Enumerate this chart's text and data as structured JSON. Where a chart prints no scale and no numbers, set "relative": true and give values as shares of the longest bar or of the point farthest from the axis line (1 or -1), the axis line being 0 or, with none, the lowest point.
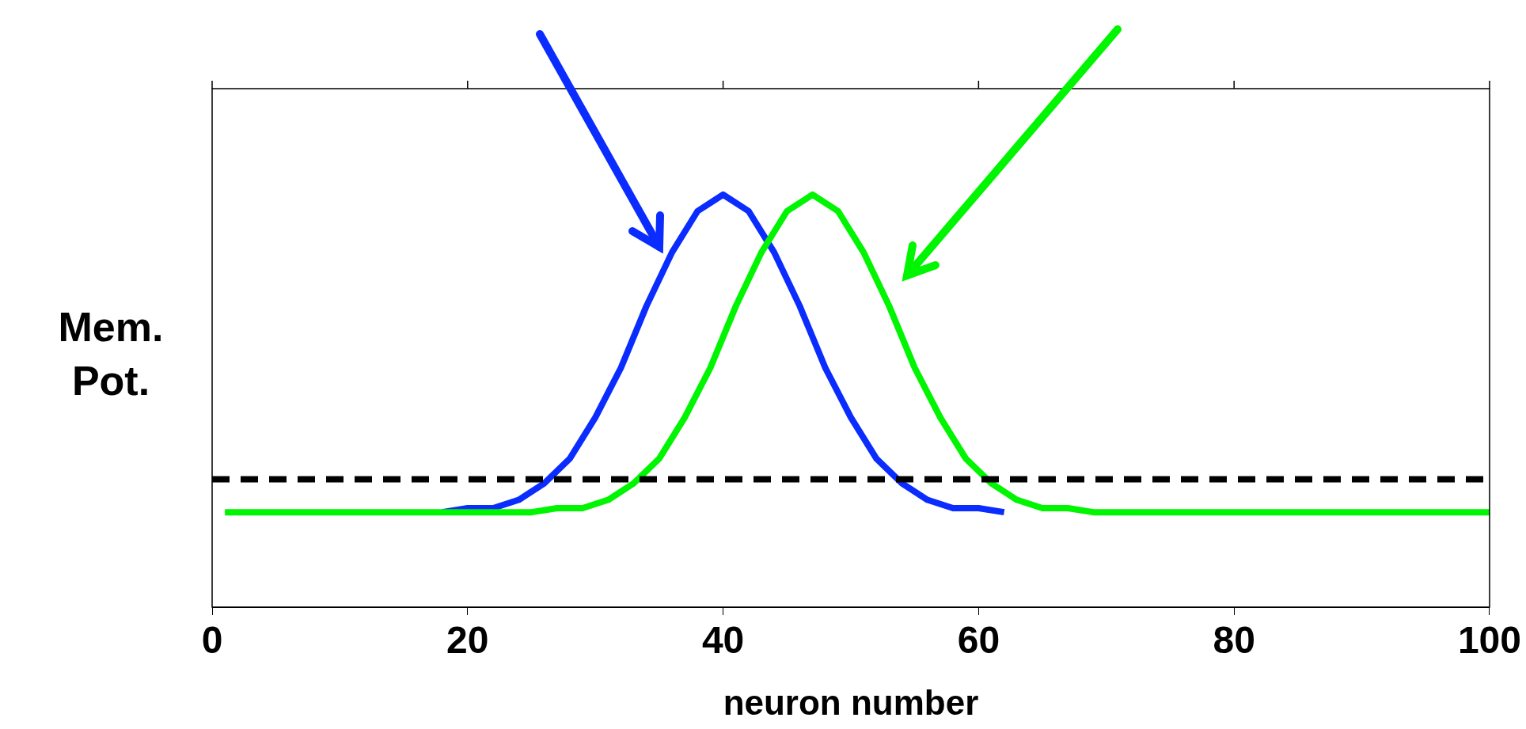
{
  "chart_data": {
    "type": "line",
    "relative": true,
    "xlabel": "neuron number",
    "ylabel": "Mem.\nPot.",
    "xlim": [
      0,
      100
    ],
    "xticks": [
      0,
      20,
      40,
      60,
      80,
      100
    ],
    "grid": false,
    "legend": false,
    "marker": "none",
    "line_style": "solid",
    "ref_lines": [
      {
        "axis": "y",
        "value": 0.31,
        "color": "#000000",
        "line_style": "dashed"
      }
    ],
    "series": [
      {
        "color": "#0a2cff",
        "x": [
          18,
          20,
          22,
          24,
          26,
          28,
          30,
          32,
          34,
          36,
          38,
          40,
          42,
          44,
          46,
          48,
          50,
          52,
          54,
          56,
          58,
          60,
          62
        ],
        "values": [
          0.23,
          0.24,
          0.24,
          0.26,
          0.3,
          0.36,
          0.46,
          0.58,
          0.73,
          0.86,
          0.96,
          1.0,
          0.96,
          0.86,
          0.73,
          0.58,
          0.46,
          0.36,
          0.3,
          0.26,
          0.24,
          0.24,
          0.23
        ]
      },
      {
        "color": "#00f500",
        "x": [
          1,
          25,
          27,
          29,
          31,
          33,
          35,
          37,
          39,
          41,
          43,
          45,
          47,
          49,
          51,
          53,
          55,
          57,
          59,
          61,
          63,
          65,
          67,
          69,
          100
        ],
        "values": [
          0.23,
          0.23,
          0.24,
          0.24,
          0.26,
          0.3,
          0.36,
          0.46,
          0.58,
          0.73,
          0.86,
          0.96,
          1.0,
          0.96,
          0.86,
          0.73,
          0.58,
          0.46,
          0.36,
          0.3,
          0.26,
          0.24,
          0.24,
          0.23,
          0.23
        ]
      }
    ]
  }
}
